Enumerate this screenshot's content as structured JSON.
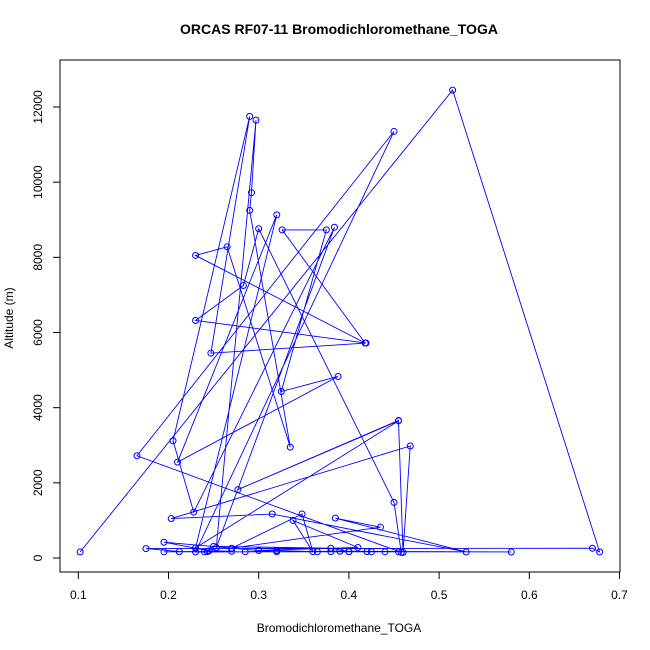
{
  "chart_data": {
    "type": "line",
    "title": "ORCAS RF07-11 Bromodichloromethane_TOGA",
    "xlabel": "Bromodichloromethane_TOGA",
    "ylabel": "Altitude (m)",
    "xlim": [
      0.1,
      0.7
    ],
    "ylim": [
      0,
      12000
    ],
    "xticks": [
      0.1,
      0.2,
      0.3,
      0.4,
      0.5,
      0.6,
      0.7
    ],
    "xtick_labels": [
      "0.1",
      "0.2",
      "0.3",
      "0.4",
      "0.5",
      "0.6",
      "0.7"
    ],
    "yticks": [
      0,
      2000,
      4000,
      6000,
      8000,
      10000,
      12000
    ],
    "ytick_labels": [
      "0",
      "2000",
      "4000",
      "6000",
      "8000",
      "10000",
      "12000"
    ],
    "grid": false,
    "series": [
      {
        "color": "#0000ff",
        "marker": "open-circle",
        "points": [
          [
            0.102,
            160
          ],
          [
            0.515,
            12450
          ],
          [
            0.678,
            160
          ],
          [
            0.67,
            260
          ],
          [
            0.175,
            250
          ],
          [
            0.212,
            170
          ],
          [
            0.243,
            170
          ],
          [
            0.25,
            310
          ],
          [
            0.38,
            260
          ],
          [
            0.4,
            170
          ],
          [
            0.42,
            170
          ],
          [
            0.455,
            165
          ],
          [
            0.58,
            160
          ],
          [
            0.39,
            180
          ],
          [
            0.32,
            165
          ],
          [
            0.23,
            160
          ],
          [
            0.45,
            11350
          ],
          [
            0.165,
            2720
          ],
          [
            0.458,
            150
          ],
          [
            0.45,
            1480
          ],
          [
            0.3,
            8760
          ],
          [
            0.283,
            7250
          ],
          [
            0.23,
            6320
          ],
          [
            0.419,
            5720
          ],
          [
            0.247,
            5450
          ],
          [
            0.29,
            11750
          ],
          [
            0.205,
            3120
          ],
          [
            0.228,
            1220
          ],
          [
            0.384,
            8800
          ],
          [
            0.253,
            280
          ],
          [
            0.297,
            11650
          ],
          [
            0.292,
            9720
          ],
          [
            0.29,
            9250
          ],
          [
            0.335,
            2950
          ],
          [
            0.265,
            8280
          ],
          [
            0.23,
            8050
          ],
          [
            0.418,
            5720
          ],
          [
            0.326,
            8730
          ],
          [
            0.375,
            8730
          ],
          [
            0.325,
            4430
          ],
          [
            0.388,
            4830
          ],
          [
            0.21,
            2550
          ],
          [
            0.32,
            9130
          ],
          [
            0.23,
            270
          ],
          [
            0.455,
            3650
          ],
          [
            0.277,
            1820
          ],
          [
            0.455,
            3660
          ],
          [
            0.46,
            150
          ],
          [
            0.468,
            2980
          ],
          [
            0.203,
            1050
          ],
          [
            0.315,
            1170
          ],
          [
            0.53,
            160
          ],
          [
            0.385,
            1060
          ],
          [
            0.435,
            820
          ],
          [
            0.27,
            260
          ],
          [
            0.348,
            1170
          ],
          [
            0.36,
            170
          ],
          [
            0.338,
            1000
          ],
          [
            0.41,
            280
          ],
          [
            0.3,
            200
          ],
          [
            0.195,
            420
          ],
          [
            0.245,
            190
          ],
          [
            0.27,
            180
          ],
          [
            0.24,
            165
          ],
          [
            0.38,
            170
          ],
          [
            0.44,
            165
          ],
          [
            0.195,
            165
          ],
          [
            0.285,
            165
          ],
          [
            0.32,
            200
          ],
          [
            0.365,
            165
          ],
          [
            0.4,
            170
          ],
          [
            0.425,
            165
          ]
        ]
      }
    ]
  }
}
